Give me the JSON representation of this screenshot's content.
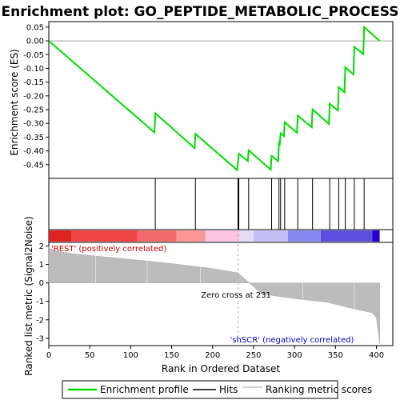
{
  "chart_data": {
    "type": "line",
    "title": "Enrichment plot: GO_PEPTIDE_METABOLIC_PROCESS",
    "xlabel": "Rank in Ordered Dataset",
    "ylabel_top": "Enrichment score (ES)",
    "ylabel_bottom": "Ranked list metric (Signal2Noise)",
    "xlim": [
      0,
      420
    ],
    "es_ylim": [
      -0.5,
      0.07
    ],
    "metric_ylim": [
      -3.4,
      2.2
    ],
    "x_ticks": [
      "0",
      "50",
      "100",
      "150",
      "200",
      "250",
      "300",
      "350",
      "400"
    ],
    "es_ticks": [
      "0.05",
      "0.00",
      "-0.05",
      "-0.10",
      "-0.15",
      "-0.20",
      "-0.25",
      "-0.30",
      "-0.35",
      "-0.40",
      "-0.45"
    ],
    "metric_ticks": [
      "2",
      "1",
      "0",
      "-1",
      "-2",
      "-3"
    ],
    "hits": [
      130,
      179,
      231,
      232,
      244,
      272,
      281,
      283,
      288,
      304,
      322,
      343,
      354,
      362,
      373,
      385
    ],
    "es_profile": {
      "x": [
        0,
        129,
        130,
        178,
        179,
        230,
        231,
        232,
        243,
        244,
        271,
        272,
        280,
        281,
        282,
        283,
        287,
        288,
        303,
        304,
        321,
        322,
        342,
        343,
        353,
        354,
        361,
        362,
        372,
        373,
        384,
        385,
        404
      ],
      "y": [
        0.0,
        -0.333,
        -0.263,
        -0.39,
        -0.338,
        -0.47,
        -0.438,
        -0.41,
        -0.437,
        -0.398,
        -0.468,
        -0.418,
        -0.437,
        -0.372,
        -0.376,
        -0.336,
        -0.346,
        -0.296,
        -0.334,
        -0.272,
        -0.314,
        -0.249,
        -0.302,
        -0.229,
        -0.253,
        -0.168,
        -0.187,
        -0.096,
        -0.122,
        -0.022,
        -0.048,
        0.05,
        0.0
      ]
    },
    "metric_profile": {
      "x": [
        0,
        2,
        10,
        30,
        60,
        100,
        150,
        200,
        231,
        260,
        300,
        340,
        370,
        395,
        400,
        402,
        404
      ],
      "y": [
        2.0,
        1.85,
        1.72,
        1.58,
        1.45,
        1.28,
        1.05,
        0.78,
        0.55,
        -0.6,
        -0.85,
        -1.05,
        -1.38,
        -1.62,
        -1.9,
        -2.6,
        -3.3
      ]
    },
    "series": [
      {
        "name": "Enrichment profile",
        "color": "#00dd00"
      },
      {
        "name": "Hits",
        "color": "#000000"
      },
      {
        "name": "Ranking metric scores",
        "color": "#c0c0c0"
      }
    ],
    "annotations": {
      "positive": "'REST' (positively correlated)",
      "negative": "'shSCR' (negatively correlated)",
      "zero_cross": "Zero cross at 231",
      "zero_cross_rank": 231
    },
    "heatmap_colors": [
      {
        "from": 0,
        "to": 28,
        "color": "#dd2222"
      },
      {
        "from": 28,
        "to": 108,
        "color": "#ee4444"
      },
      {
        "from": 108,
        "to": 156,
        "color": "#f46a6a"
      },
      {
        "from": 156,
        "to": 191,
        "color": "#fa9696"
      },
      {
        "from": 191,
        "to": 233,
        "color": "#fbc4e0"
      },
      {
        "from": 233,
        "to": 250,
        "color": "#e4dcf4"
      },
      {
        "from": 250,
        "to": 292,
        "color": "#c4c0f6"
      },
      {
        "from": 292,
        "to": 332,
        "color": "#8888f0"
      },
      {
        "from": 332,
        "to": 395,
        "color": "#5c4fe0"
      },
      {
        "from": 395,
        "to": 404,
        "color": "#2a00cc"
      }
    ],
    "grid": false
  }
}
